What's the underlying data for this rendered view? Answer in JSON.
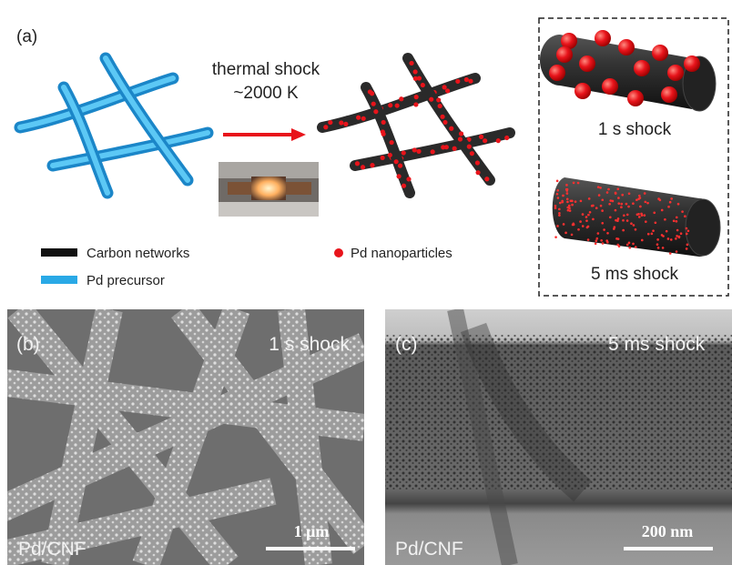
{
  "panel_a": {
    "label": "(a)",
    "arrow_label_line1": "thermal shock",
    "arrow_label_line2": "~2000 K",
    "inset_top_caption": "1 s shock",
    "inset_bottom_caption": "5 ms shock",
    "legend": [
      "Carbon networks",
      "Pd precursor",
      "Pd nanoparticles"
    ]
  },
  "panel_b": {
    "label": "(b)",
    "condition": "1 s shock",
    "sample": "Pd/CNF",
    "scale_bar": "1 μm"
  },
  "panel_c": {
    "label": "(c)",
    "condition": "5 ms shock",
    "sample": "Pd/CNF",
    "scale_bar": "200 nm"
  }
}
